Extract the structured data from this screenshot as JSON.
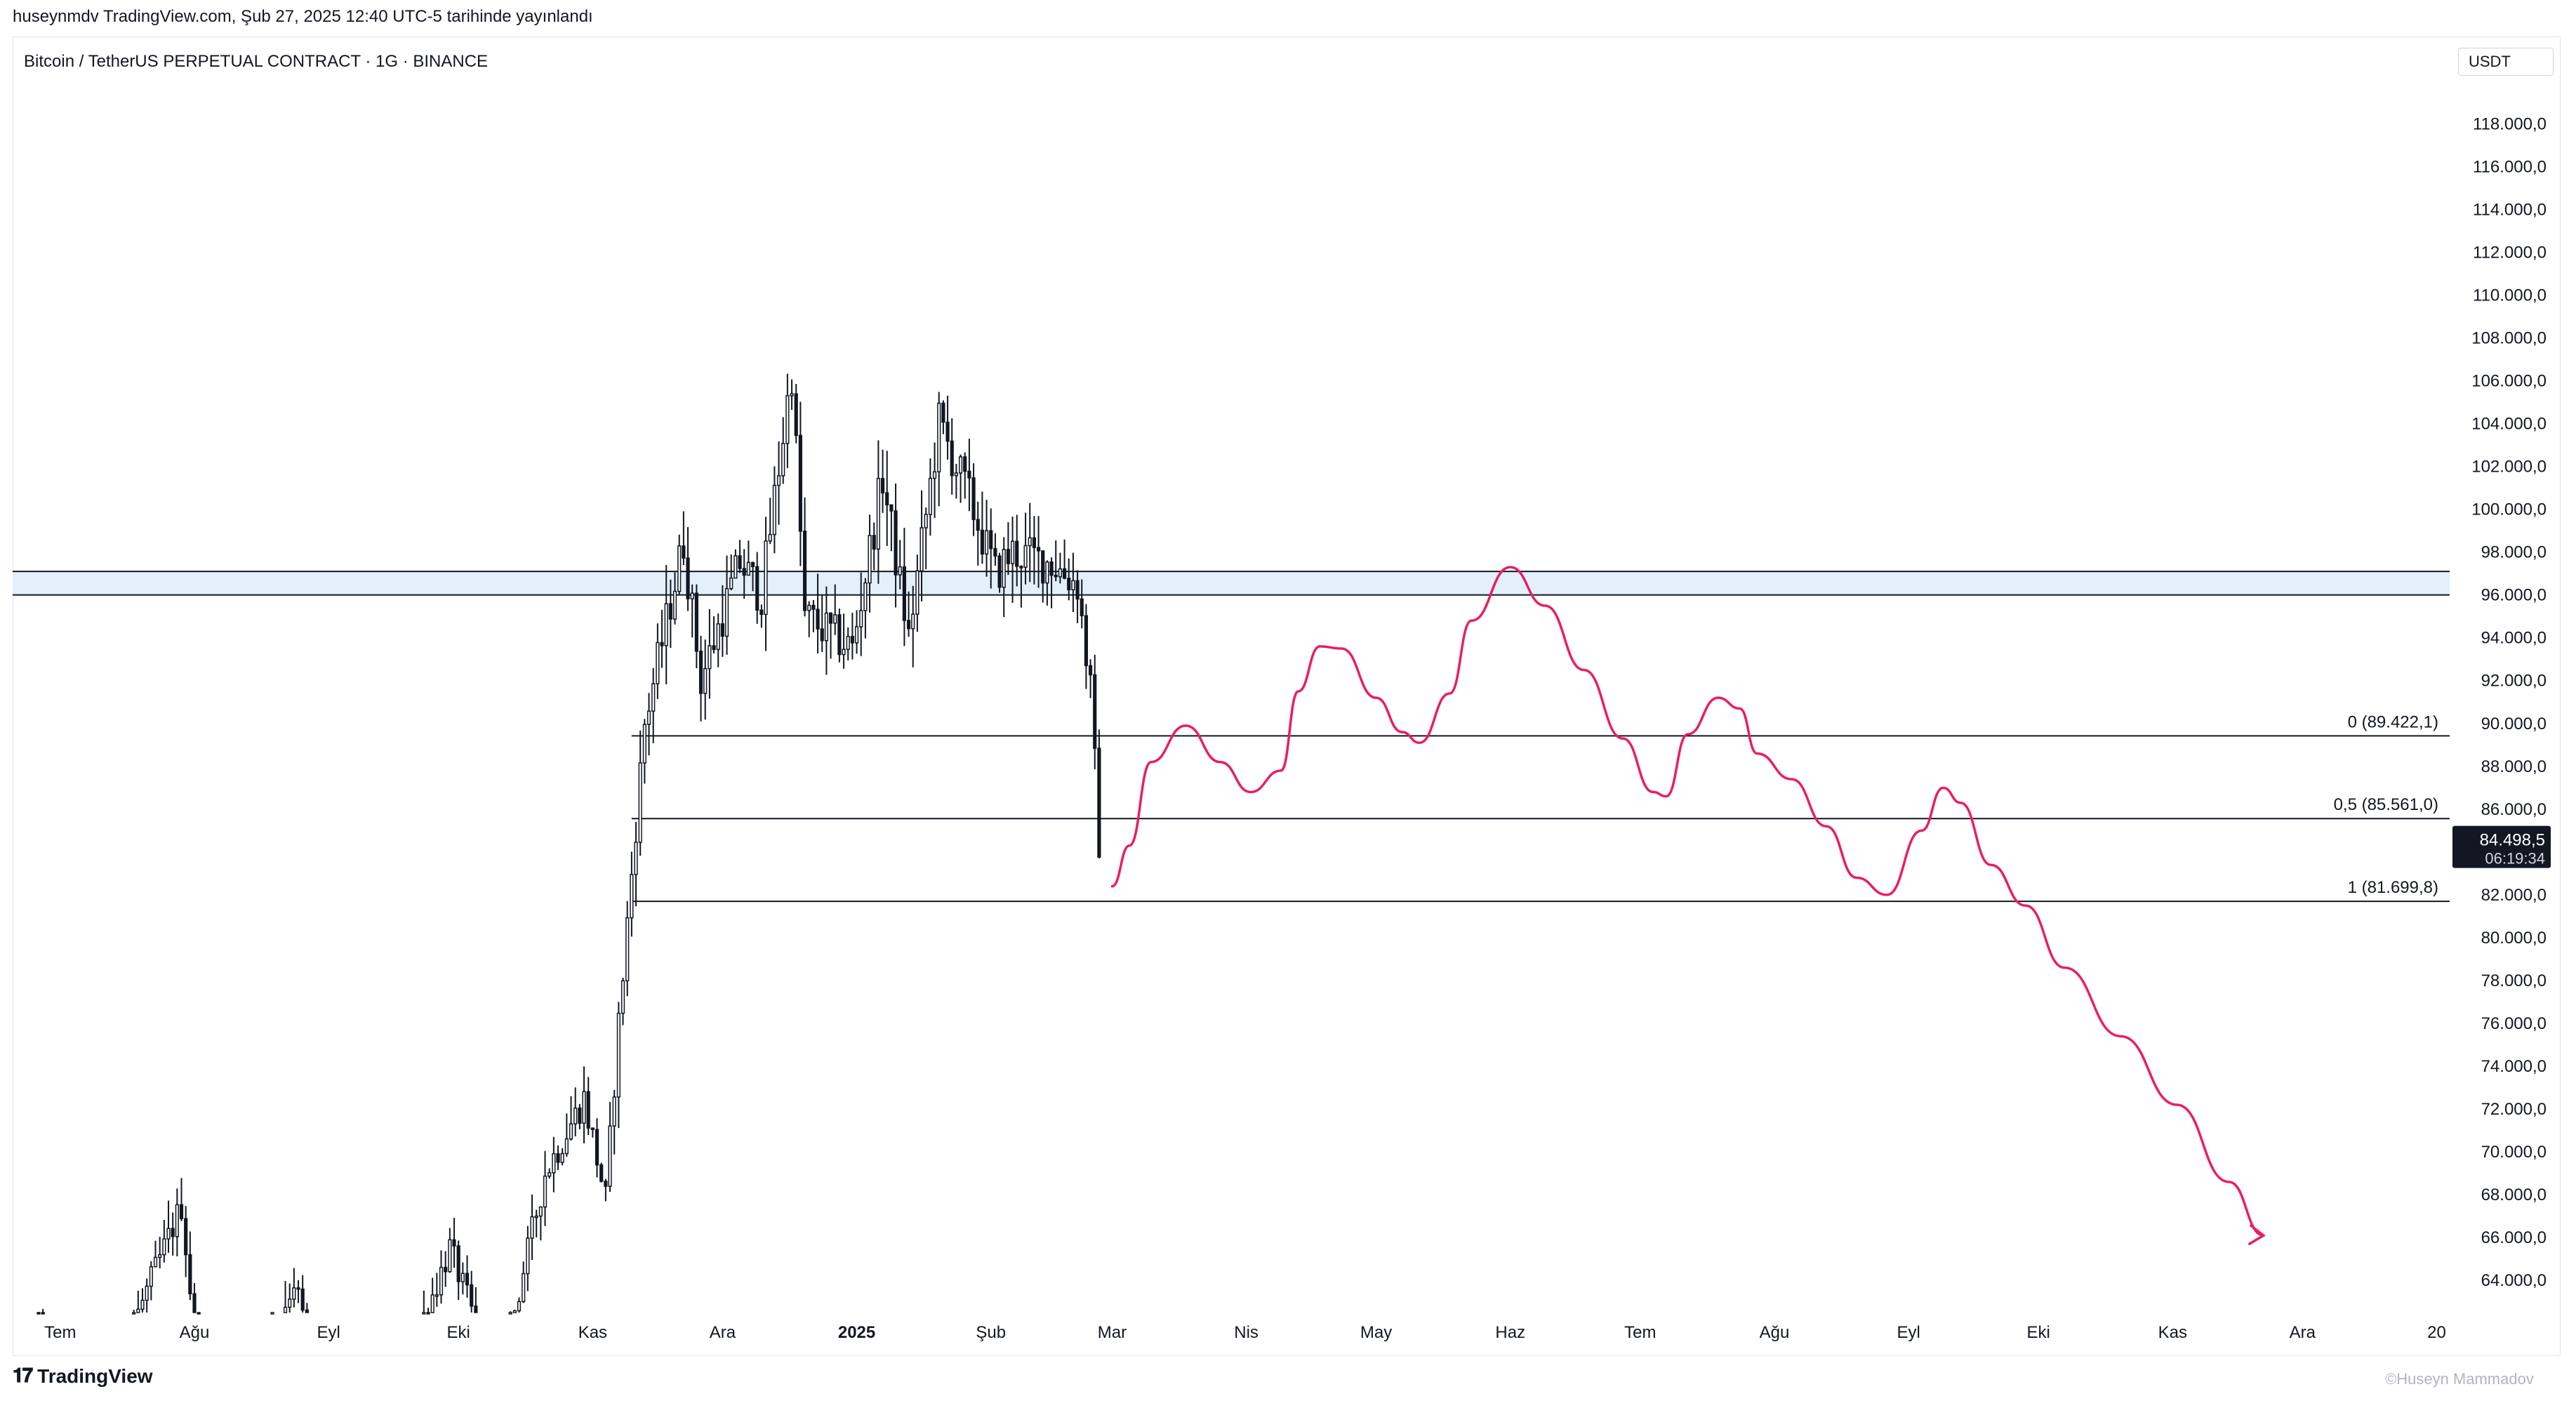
{
  "header": {
    "published": "huseynmdv TradingView.com, Şub 27, 2025 12:40 UTC-5 tarihinde yayınlandı"
  },
  "legend": "Bitcoin / TetherUS PERPETUAL CONTRACT · 1G · BINANCE",
  "currency": "USDT",
  "footer": {
    "brand": "TradingView",
    "logo_icon": "tradingview-logo-icon"
  },
  "watermark": "©Huseyn Mammadov",
  "chart_data": {
    "type": "candlestick",
    "symbol": "BTCUSDT.P",
    "timeframe": "1G",
    "ylim": [
      62500,
      120500
    ],
    "y_ticks": [
      {
        "v": 64000,
        "label": "64.000,0"
      },
      {
        "v": 66000,
        "label": "66.000,0"
      },
      {
        "v": 68000,
        "label": "68.000,0"
      },
      {
        "v": 70000,
        "label": "70.000,0"
      },
      {
        "v": 72000,
        "label": "72.000,0"
      },
      {
        "v": 74000,
        "label": "74.000,0"
      },
      {
        "v": 76000,
        "label": "76.000,0"
      },
      {
        "v": 78000,
        "label": "78.000,0"
      },
      {
        "v": 80000,
        "label": "80.000,0"
      },
      {
        "v": 82000,
        "label": "82.000,0"
      },
      {
        "v": 86000,
        "label": "86.000,0"
      },
      {
        "v": 88000,
        "label": "88.000,0"
      },
      {
        "v": 90000,
        "label": "90.000,0"
      },
      {
        "v": 92000,
        "label": "92.000,0"
      },
      {
        "v": 94000,
        "label": "94.000,0"
      },
      {
        "v": 96000,
        "label": "96.000,0"
      },
      {
        "v": 98000,
        "label": "98.000,0"
      },
      {
        "v": 100000,
        "label": "100.000,0"
      },
      {
        "v": 102000,
        "label": "102.000,0"
      },
      {
        "v": 104000,
        "label": "104.000,0"
      },
      {
        "v": 106000,
        "label": "106.000,0"
      },
      {
        "v": 108000,
        "label": "108.000,0"
      },
      {
        "v": 110000,
        "label": "110.000,0"
      },
      {
        "v": 112000,
        "label": "112.000,0"
      },
      {
        "v": 114000,
        "label": "114.000,0"
      },
      {
        "v": 116000,
        "label": "116.000,0"
      },
      {
        "v": 118000,
        "label": "118.000,0"
      }
    ],
    "x_ticks": [
      {
        "d": "2024-07-01",
        "label": "Tem"
      },
      {
        "d": "2024-08-01",
        "label": "Ağu"
      },
      {
        "d": "2024-09-01",
        "label": "Eyl"
      },
      {
        "d": "2024-10-01",
        "label": "Eki"
      },
      {
        "d": "2024-11-01",
        "label": "Kas"
      },
      {
        "d": "2024-12-01",
        "label": "Ara"
      },
      {
        "d": "2025-01-01",
        "label": "2025",
        "bold": true
      },
      {
        "d": "2025-02-01",
        "label": "Şub"
      },
      {
        "d": "2025-03-01",
        "label": "Mar"
      },
      {
        "d": "2025-04-01",
        "label": "Nis"
      },
      {
        "d": "2025-05-01",
        "label": "May"
      },
      {
        "d": "2025-06-01",
        "label": "Haz"
      },
      {
        "d": "2025-07-01",
        "label": "Tem"
      },
      {
        "d": "2025-08-01",
        "label": "Ağu"
      },
      {
        "d": "2025-09-01",
        "label": "Eyl"
      },
      {
        "d": "2025-10-01",
        "label": "Eki"
      },
      {
        "d": "2025-11-01",
        "label": "Kas"
      },
      {
        "d": "2025-12-01",
        "label": "Ara"
      },
      {
        "d": "2026-01-01",
        "label": "20"
      }
    ],
    "price_keypoints": [
      [
        "2024-06-25",
        61500
      ],
      [
        "2024-07-05",
        56000
      ],
      [
        "2024-07-14",
        60000
      ],
      [
        "2024-07-29",
        67500
      ],
      [
        "2024-08-05",
        54000
      ],
      [
        "2024-08-24",
        64000
      ],
      [
        "2024-09-06",
        53000
      ],
      [
        "2024-09-29",
        65500
      ],
      [
        "2024-10-10",
        59000
      ],
      [
        "2024-10-21",
        69000
      ],
      [
        "2024-10-30",
        72500
      ],
      [
        "2024-11-04",
        67800
      ],
      [
        "2024-11-07",
        76000
      ],
      [
        "2024-11-13",
        90000
      ],
      [
        "2024-11-22",
        98500
      ],
      [
        "2024-11-26",
        92000
      ],
      [
        "2024-12-05",
        97500
      ],
      [
        "2024-12-10",
        96000
      ],
      [
        "2024-12-17",
        106500
      ],
      [
        "2024-12-20",
        95000
      ],
      [
        "2024-12-31",
        93500
      ],
      [
        "2025-01-07",
        101500
      ],
      [
        "2025-01-13",
        94000
      ],
      [
        "2025-01-20",
        104000
      ],
      [
        "2025-01-27",
        100500
      ],
      [
        "2025-02-02",
        97000
      ],
      [
        "2025-02-06",
        98000
      ],
      [
        "2025-02-15",
        97500
      ],
      [
        "2025-02-21",
        96500
      ],
      [
        "2025-02-24",
        91500
      ],
      [
        "2025-02-26",
        84500
      ]
    ],
    "horizontal_zone": {
      "low": 96000,
      "high": 97100,
      "color": "#e3f0fa"
    },
    "fib_levels": [
      {
        "value": 89422.1,
        "label": "0 (89.422,1)",
        "start": "2024-11-10"
      },
      {
        "value": 85561.0,
        "label": "0,5 (85.561,0)",
        "start": "2024-11-10"
      },
      {
        "value": 81699.8,
        "label": "1 (81.699,8)",
        "start": "2024-11-10"
      }
    ],
    "last_price": {
      "value": 84498.5,
      "label": "84.498,5",
      "countdown": "06:19:34"
    },
    "projection": {
      "color": "#e91e63",
      "points": [
        [
          "2025-03-01",
          82400
        ],
        [
          "2025-03-05",
          84300
        ],
        [
          "2025-03-10",
          88200
        ],
        [
          "2025-03-18",
          89900
        ],
        [
          "2025-03-26",
          88200
        ],
        [
          "2025-04-02",
          86800
        ],
        [
          "2025-04-09",
          87800
        ],
        [
          "2025-04-13",
          91500
        ],
        [
          "2025-04-18",
          93600
        ],
        [
          "2025-04-23",
          93500
        ],
        [
          "2025-05-01",
          91200
        ],
        [
          "2025-05-07",
          89600
        ],
        [
          "2025-05-11",
          89100
        ],
        [
          "2025-05-18",
          91400
        ],
        [
          "2025-05-23",
          94800
        ],
        [
          "2025-06-01",
          97300
        ],
        [
          "2025-06-09",
          95500
        ],
        [
          "2025-06-18",
          92500
        ],
        [
          "2025-06-27",
          89300
        ],
        [
          "2025-07-04",
          86800
        ],
        [
          "2025-07-07",
          86600
        ],
        [
          "2025-07-12",
          89500
        ],
        [
          "2025-07-19",
          91200
        ],
        [
          "2025-07-24",
          90700
        ],
        [
          "2025-07-28",
          88600
        ],
        [
          "2025-08-05",
          87400
        ],
        [
          "2025-08-13",
          85200
        ],
        [
          "2025-08-20",
          82800
        ],
        [
          "2025-08-27",
          82000
        ],
        [
          "2025-09-04",
          85000
        ],
        [
          "2025-09-09",
          87000
        ],
        [
          "2025-09-13",
          86300
        ],
        [
          "2025-09-20",
          83400
        ],
        [
          "2025-09-28",
          81500
        ],
        [
          "2025-10-07",
          78600
        ],
        [
          "2025-10-20",
          75400
        ],
        [
          "2025-11-02",
          72200
        ],
        [
          "2025-11-14",
          68600
        ],
        [
          "2025-11-22",
          66100
        ]
      ]
    }
  }
}
